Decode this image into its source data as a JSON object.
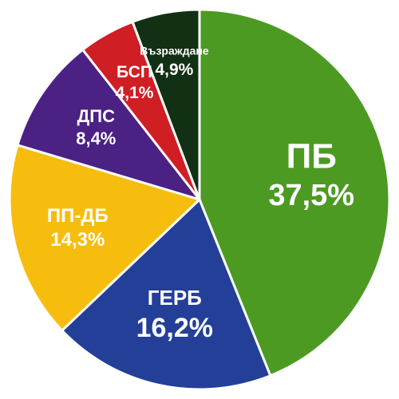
{
  "chart_data": {
    "type": "pie",
    "title": "",
    "slices": [
      {
        "label": "ПБ",
        "value_label": "37,5%",
        "value": 37.5,
        "color": "#4d9a23"
      },
      {
        "label": "ГЕРБ",
        "value_label": "16,2%",
        "value": 16.2,
        "color": "#243f97"
      },
      {
        "label": "ПП-ДБ",
        "value_label": "14,3%",
        "value": 14.3,
        "color": "#f7bd0e"
      },
      {
        "label": "ДПС",
        "value_label": "8,4%",
        "value": 8.4,
        "color": "#4b2184"
      },
      {
        "label": "БСП",
        "value_label": "4,1%",
        "value": 4.1,
        "color": "#d01e25"
      },
      {
        "label": "Възраждане",
        "value_label": "4,9%",
        "value": 4.9,
        "color": "#123014"
      }
    ]
  }
}
